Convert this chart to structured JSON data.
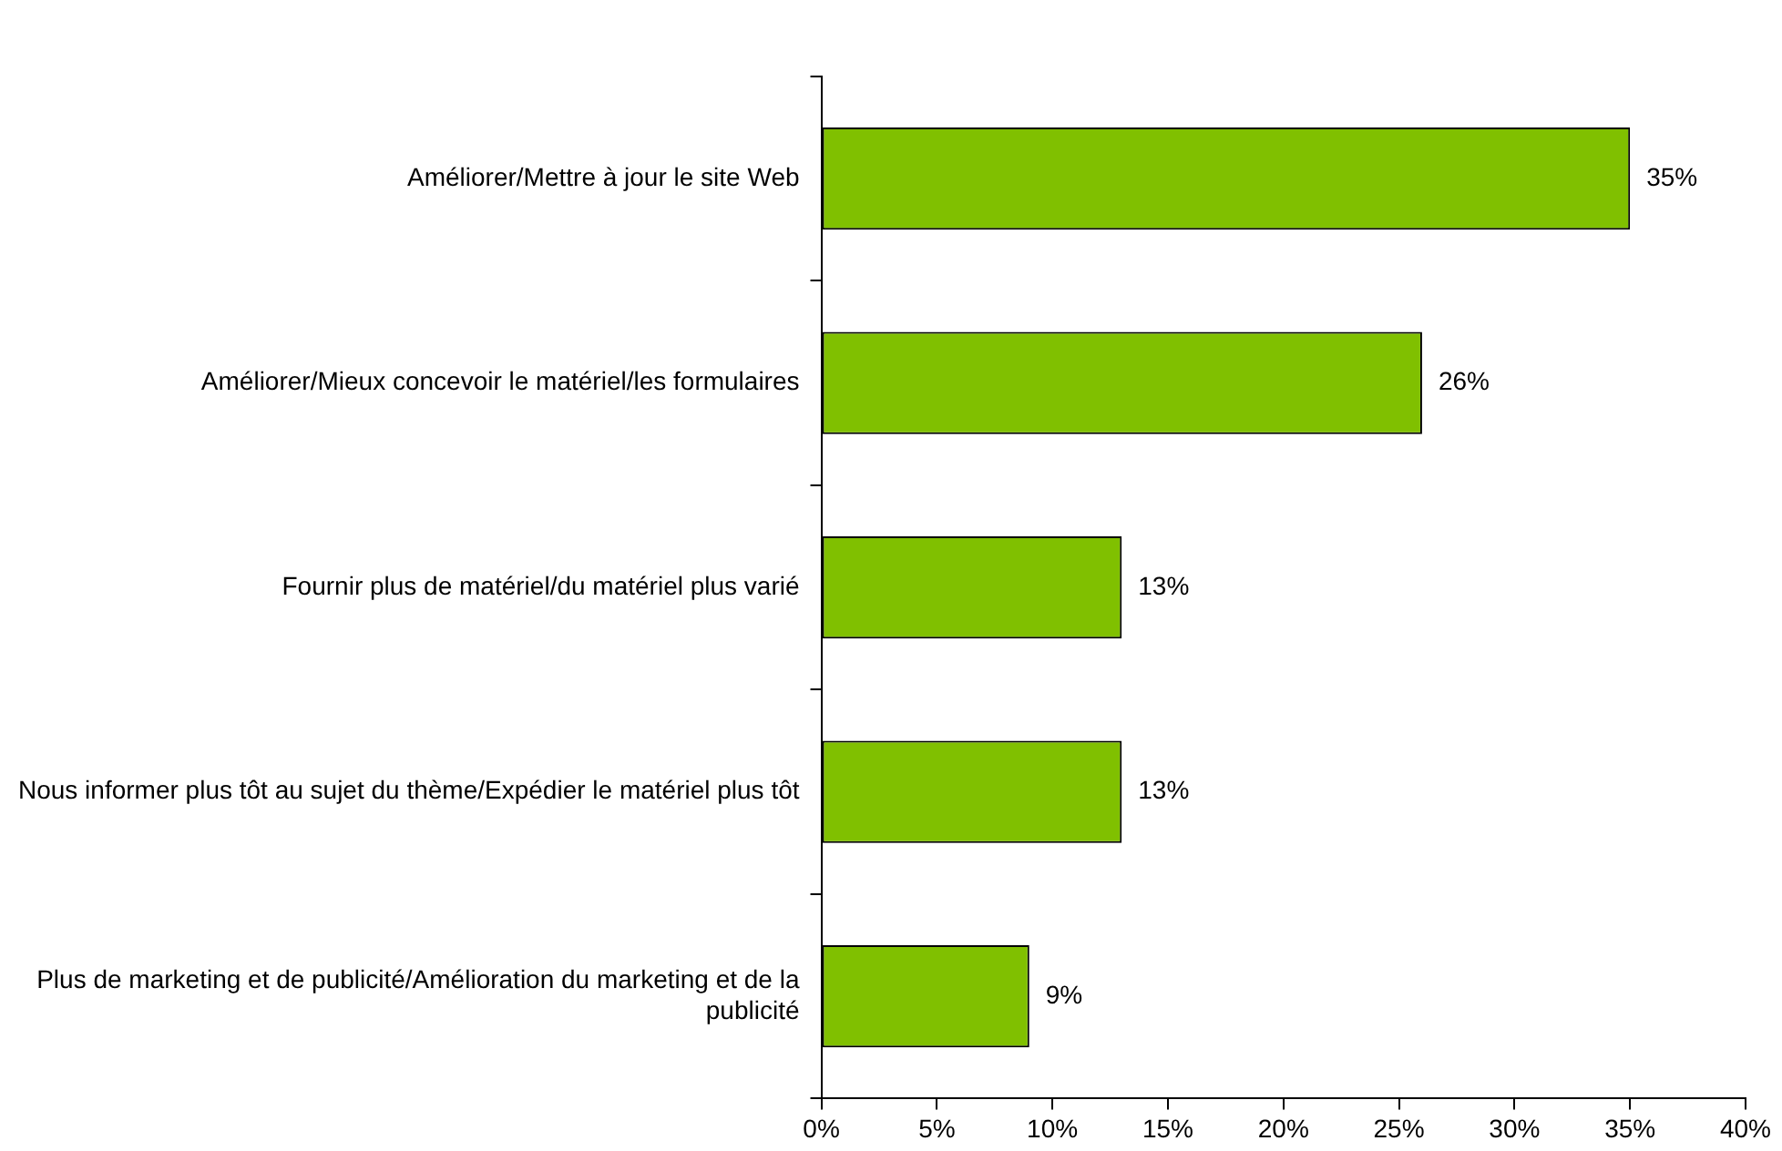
{
  "chart_data": {
    "type": "bar",
    "orientation": "horizontal",
    "categories": [
      "Améliorer/Mettre à jour le site Web",
      "Améliorer/Mieux concevoir le matériel/les formulaires",
      "Fournir plus de matériel/du matériel plus varié",
      "Nous informer plus tôt au sujet du thème/Expédier le matériel plus tôt",
      "Plus de marketing et de publicité/Amélioration du marketing et de la publicité"
    ],
    "values": [
      35,
      26,
      13,
      13,
      9
    ],
    "value_labels": [
      "35%",
      "26%",
      "13%",
      "13%",
      "9%"
    ],
    "color": "#80c000",
    "xlim": [
      0,
      40
    ],
    "xticks": [
      {
        "value": 0,
        "label": "0%"
      },
      {
        "value": 5,
        "label": "5%"
      },
      {
        "value": 10,
        "label": "10%"
      },
      {
        "value": 15,
        "label": "15%"
      },
      {
        "value": 20,
        "label": "20%"
      },
      {
        "value": 25,
        "label": "25%"
      },
      {
        "value": 30,
        "label": "30%"
      },
      {
        "value": 35,
        "label": "35%"
      },
      {
        "value": 40,
        "label": "40%"
      }
    ],
    "grid": false,
    "legend": false
  }
}
